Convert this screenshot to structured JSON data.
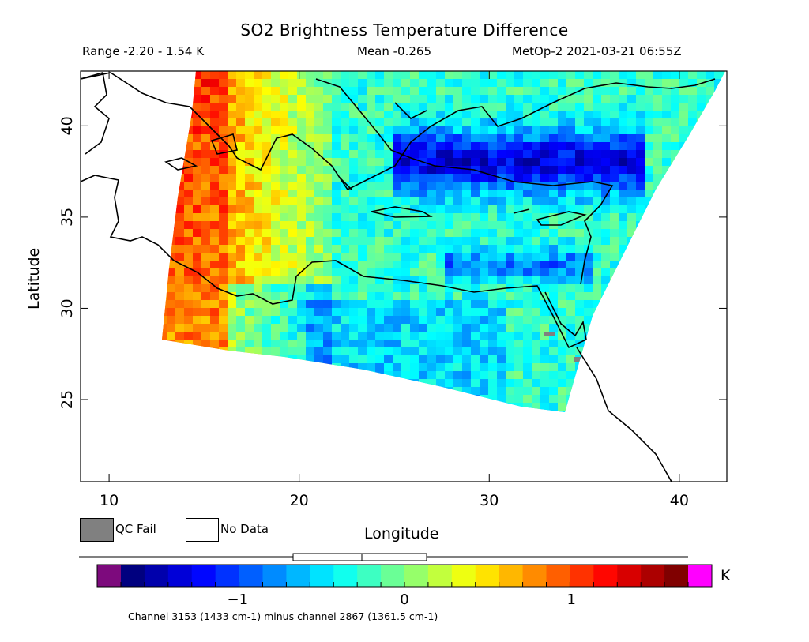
{
  "title": "SO2 Brightness Temperature Difference",
  "header": {
    "range": "Range -2.20 - 1.54 K",
    "mean": "Mean -0.265",
    "satellite_time": "MetOp-2 2021-03-21 06:55Z"
  },
  "axes": {
    "xlabel": "Longitude",
    "ylabel": "Latitude",
    "x_ticks": [
      "10",
      "20",
      "30",
      "40"
    ],
    "y_ticks": [
      "25",
      "30",
      "35",
      "40"
    ],
    "xlim": [
      8.5,
      42.5
    ],
    "ylim": [
      20.5,
      43
    ]
  },
  "legend": {
    "qc_fail": "QC Fail",
    "no_data": "No Data"
  },
  "colorbar": {
    "unit": "K",
    "ticks": [
      "-1",
      "0",
      "1"
    ],
    "range": [
      -1.7,
      1.7
    ],
    "colors": [
      "#7d0a7d",
      "#00007f",
      "#0000ff",
      "#0080ff",
      "#00ffff",
      "#80ff80",
      "#ffff00",
      "#ff8000",
      "#ff0000",
      "#800000",
      "#ff00ff"
    ]
  },
  "footnote": "Channel 3153 (1433 cm-1) minus channel 2867 (1361.5 cm-1)",
  "colors": {
    "qc_fail": "#808080",
    "frame": "#000000"
  }
}
